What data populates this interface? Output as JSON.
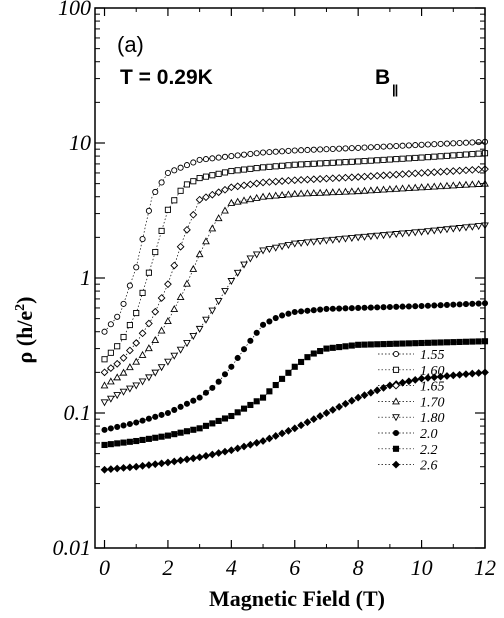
{
  "chart_data": {
    "type": "scatter",
    "panel_label": "(a)",
    "temperature_label": "T = 0.29K",
    "field_label_main": "B",
    "field_label_sub": "||",
    "xlabel": "Magnetic Field (T)",
    "ylabel_main": "ρ (h/e",
    "ylabel_sup": "2",
    "ylabel_end": ")",
    "xlim": [
      -0.3,
      12
    ],
    "ylim": [
      0.01,
      100
    ],
    "yscale": "log",
    "x_ticks": [
      0,
      2,
      4,
      6,
      8,
      10,
      12
    ],
    "x_tick_labels": [
      "0",
      "2",
      "4",
      "6",
      "8",
      "10",
      "12"
    ],
    "y_ticks": [
      0.01,
      0.1,
      1,
      10,
      100
    ],
    "y_tick_labels": [
      "0.01",
      "0.1",
      "1",
      "10",
      "100"
    ],
    "grid": false,
    "legend_position": "bottom-right",
    "series": [
      {
        "name": "1.55",
        "marker": "circle-open",
        "x": [
          0,
          0.5,
          1,
          1.5,
          2,
          3,
          4,
          5,
          6,
          8,
          10,
          12
        ],
        "y": [
          0.4,
          0.55,
          1.2,
          4.0,
          6.0,
          7.5,
          8.0,
          8.5,
          8.8,
          9.2,
          9.7,
          10.2
        ]
      },
      {
        "name": "1.60",
        "marker": "square-open",
        "x": [
          0,
          0.5,
          1,
          1.5,
          2,
          2.5,
          3,
          4,
          5,
          6,
          8,
          10,
          12
        ],
        "y": [
          0.25,
          0.33,
          0.55,
          1.3,
          3.2,
          4.8,
          5.5,
          6.2,
          6.6,
          6.9,
          7.3,
          7.8,
          8.4
        ]
      },
      {
        "name": "1.65",
        "marker": "diamond-open",
        "x": [
          0,
          0.5,
          1,
          1.5,
          2,
          2.5,
          3,
          4,
          5,
          6,
          8,
          10,
          12
        ],
        "y": [
          0.2,
          0.24,
          0.33,
          0.5,
          0.9,
          2.0,
          3.8,
          4.7,
          5.1,
          5.3,
          5.6,
          6.0,
          6.4
        ]
      },
      {
        "name": "1.70",
        "marker": "triangle-up-open",
        "x": [
          0,
          0.5,
          1,
          1.5,
          2,
          2.5,
          3,
          3.5,
          4,
          5,
          6,
          8,
          10,
          12
        ],
        "y": [
          0.16,
          0.19,
          0.24,
          0.32,
          0.48,
          0.8,
          1.5,
          2.6,
          3.6,
          4.0,
          4.2,
          4.4,
          4.7,
          5.0
        ]
      },
      {
        "name": "1.80",
        "marker": "triangle-down-open",
        "x": [
          0,
          0.5,
          1,
          1.5,
          2,
          2.5,
          3,
          3.5,
          4,
          4.5,
          5,
          6,
          8,
          10,
          12
        ],
        "y": [
          0.12,
          0.14,
          0.16,
          0.19,
          0.24,
          0.31,
          0.42,
          0.62,
          0.95,
          1.35,
          1.6,
          1.8,
          2.0,
          2.2,
          2.45
        ]
      },
      {
        "name": "2.0",
        "marker": "circle-filled",
        "x": [
          0,
          1,
          2,
          3,
          3.5,
          4,
          4.5,
          5,
          5.5,
          6,
          7,
          8,
          10,
          12
        ],
        "y": [
          0.075,
          0.085,
          0.1,
          0.13,
          0.16,
          0.22,
          0.32,
          0.45,
          0.52,
          0.56,
          0.59,
          0.6,
          0.62,
          0.65
        ]
      },
      {
        "name": "2.2",
        "marker": "square-filled",
        "x": [
          0,
          1,
          2,
          3,
          4,
          5,
          5.5,
          6,
          6.5,
          7,
          8,
          10,
          12
        ],
        "y": [
          0.058,
          0.062,
          0.068,
          0.077,
          0.095,
          0.13,
          0.17,
          0.22,
          0.27,
          0.3,
          0.32,
          0.33,
          0.34
        ]
      },
      {
        "name": "2.6",
        "marker": "diamond-filled",
        "x": [
          0,
          1,
          2,
          3,
          4,
          5,
          6,
          7,
          8,
          9,
          10,
          11,
          12
        ],
        "y": [
          0.038,
          0.04,
          0.043,
          0.047,
          0.053,
          0.062,
          0.077,
          0.1,
          0.13,
          0.16,
          0.18,
          0.19,
          0.2
        ]
      }
    ]
  }
}
